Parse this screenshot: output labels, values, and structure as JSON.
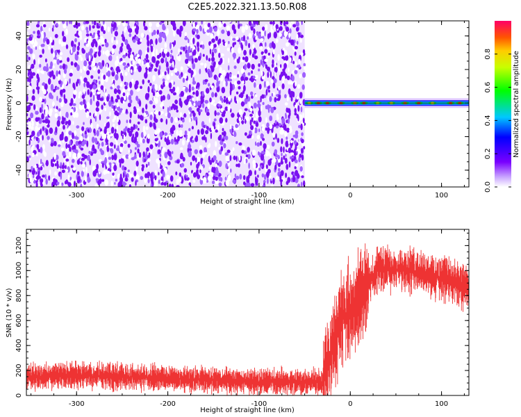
{
  "title": "C2E5.2022.321.13.50.R08",
  "chart_data": [
    {
      "type": "heatmap",
      "xlabel": "Height of straight line (km)",
      "ylabel": "Frequency (Hz)",
      "xlim": [
        -355,
        130
      ],
      "ylim": [
        -50,
        49
      ],
      "xticks": [
        -300,
        -200,
        -100,
        0,
        100
      ],
      "yticks": [
        -40,
        -20,
        0,
        20,
        40
      ],
      "noise_region_x": [
        -355,
        -50
      ],
      "signal_region_x": [
        -50,
        130
      ],
      "signal_center_freq": 0,
      "colorbar": {
        "label": "Normalized spectral amplitude",
        "ticks": [
          0.0,
          0.2,
          0.4,
          0.6,
          0.8
        ],
        "range": [
          0,
          1
        ]
      }
    },
    {
      "type": "line",
      "xlabel": "Height of straight line (km)",
      "ylabel": "SNR (10 * v/v)",
      "xlim": [
        -355,
        130
      ],
      "ylim": [
        0,
        1330
      ],
      "xticks": [
        -300,
        -200,
        -100,
        0,
        100
      ],
      "yticks": [
        0,
        200,
        400,
        600,
        800,
        1000,
        1200
      ],
      "series": [
        {
          "color": "#ee3333",
          "x": [
            -355,
            -300,
            -250,
            -200,
            -150,
            -100,
            -50,
            -30,
            -20,
            -10,
            0,
            10,
            20,
            30,
            40,
            50,
            60,
            70,
            80,
            90,
            100,
            110,
            120,
            130
          ],
          "y": [
            150,
            160,
            150,
            140,
            120,
            110,
            110,
            110,
            400,
            600,
            700,
            780,
            900,
            1000,
            1020,
            1010,
            1000,
            990,
            980,
            960,
            940,
            920,
            880,
            850
          ]
        }
      ]
    }
  ]
}
